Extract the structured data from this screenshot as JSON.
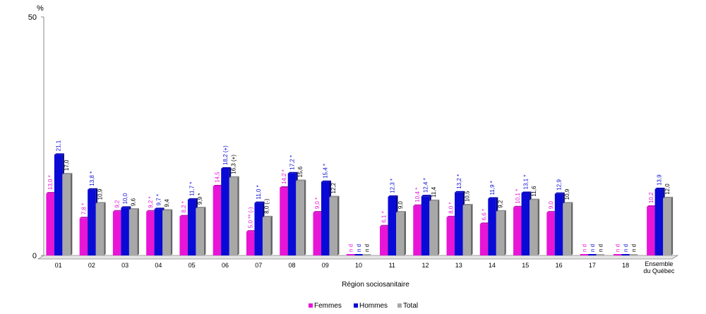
{
  "chart_data": {
    "type": "bar",
    "ylabel": "%",
    "xlabel": "Région sociosanitaire",
    "ylim": [
      0,
      50
    ],
    "yticks": [
      "0",
      "50"
    ],
    "categories": [
      "01",
      "02",
      "03",
      "04",
      "05",
      "06",
      "07",
      "08",
      "09",
      "10",
      "11",
      "12",
      "13",
      "14",
      "15",
      "16",
      "17",
      "18",
      "Ensemble du Québec"
    ],
    "series": [
      {
        "name": "Femmes",
        "color": "#e815d6",
        "values": [
          13.0,
          7.8,
          9.2,
          9.2,
          8.2,
          14.5,
          5.0,
          14.2,
          9.0,
          0,
          6.1,
          10.4,
          8.0,
          6.6,
          10.1,
          9.0,
          0,
          0,
          10.2
        ],
        "labels": [
          "13,0 *",
          "7,8 *",
          "9,2",
          "9,2 *",
          "8,2 *",
          "14,5",
          "5,0 ** (-)",
          "14,2 *",
          "9,0 *",
          "n d",
          "6,1 *",
          "10,4 *",
          "8,0 *",
          "6,6 *",
          "10,1 *",
          "9,0",
          "n d",
          "n d",
          "10,2"
        ]
      },
      {
        "name": "Hommes",
        "color": "#0a0ad6",
        "values": [
          21.1,
          13.8,
          10.0,
          9.7,
          11.7,
          18.2,
          11.0,
          17.2,
          15.4,
          0,
          12.3,
          12.4,
          13.2,
          11.9,
          13.1,
          12.9,
          0,
          0,
          13.9
        ],
        "labels": [
          "21,1",
          "13,8 *",
          "10,0",
          "9,7 *",
          "11,7 *",
          "18,2 (+)",
          "11,0 *",
          "17,2 *",
          "15,4 *",
          "n d",
          "12,3 *",
          "12,4 *",
          "13,2 *",
          "11,9 *",
          "13,1 *",
          "12,9",
          "n d",
          "n d",
          "13,9"
        ]
      },
      {
        "name": "Total",
        "color": "#a8a8a8",
        "values": [
          17.0,
          10.9,
          9.6,
          9.4,
          9.9,
          16.3,
          8.0,
          15.6,
          12.2,
          0,
          9.0,
          11.4,
          10.5,
          9.2,
          11.6,
          10.9,
          0,
          0,
          12.0
        ],
        "labels": [
          "17,0",
          "10,9",
          "9,6",
          "9,4",
          "9,9 *",
          "16,3 (+)",
          "8,0 (-)",
          "15,6",
          "12,2",
          "n d",
          "9,0",
          "11,4",
          "10,5",
          "9,2",
          "11,6",
          "10,9",
          "n d",
          "n d",
          "12,0"
        ]
      }
    ],
    "label_colors": {
      "Femmes": "#e815d6",
      "Hommes": "#0a0ad6",
      "Total": "#000000"
    },
    "legend_position": "bottom",
    "grid": false
  }
}
